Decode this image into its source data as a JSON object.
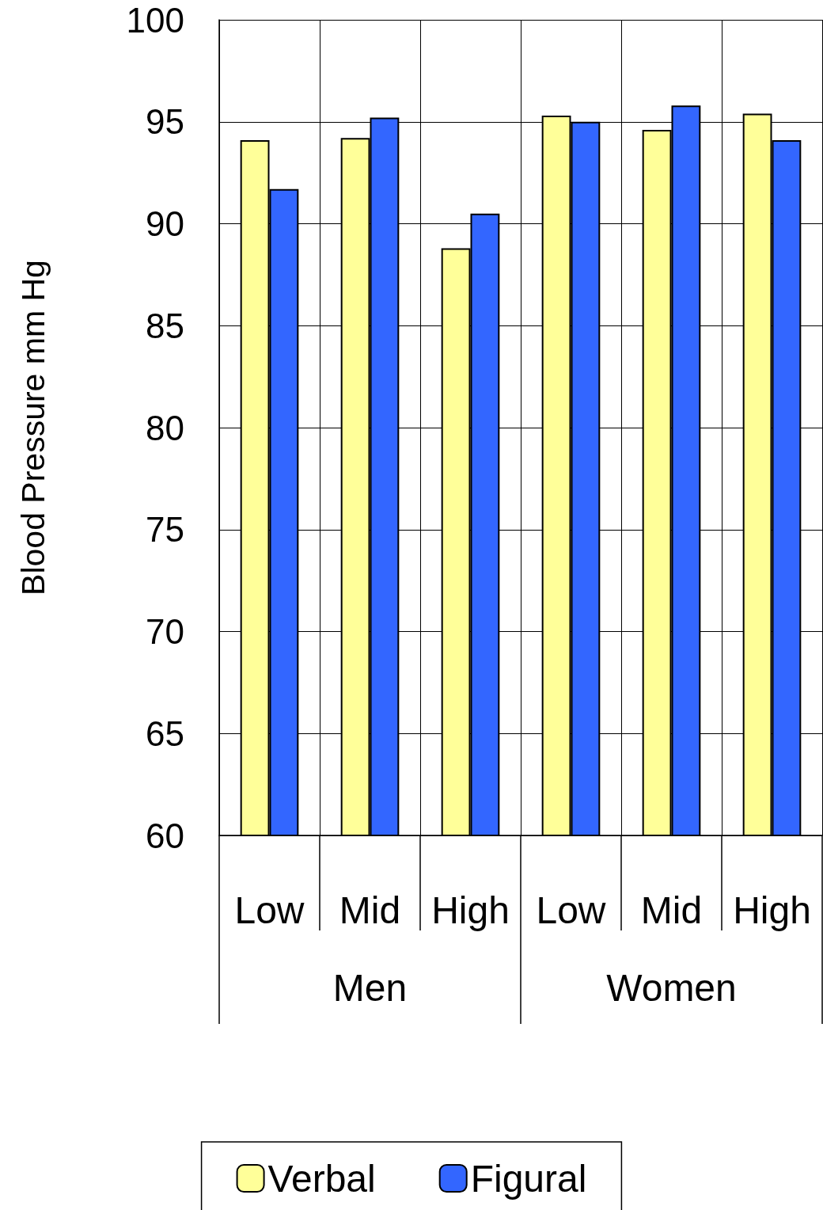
{
  "chart_data": {
    "type": "bar",
    "ylabel": "Blood Pressure mm Hg",
    "categories": [
      "Low",
      "Mid",
      "High",
      "Low",
      "Mid",
      "High"
    ],
    "annotations": [
      "Men",
      "Women"
    ],
    "series": [
      {
        "name": "Verbal",
        "color": "#ffff99",
        "values": [
          94.1,
          94.2,
          88.8,
          95.3,
          94.6,
          95.4
        ]
      },
      {
        "name": "Figural",
        "color": "#3366ff",
        "values": [
          91.7,
          95.2,
          90.5,
          95.0,
          95.8,
          94.1
        ]
      }
    ],
    "ylim": [
      60,
      100
    ],
    "yticks": [
      60,
      65,
      70,
      75,
      80,
      85,
      90,
      95,
      100
    ],
    "grid": true,
    "legend": "bottom"
  }
}
